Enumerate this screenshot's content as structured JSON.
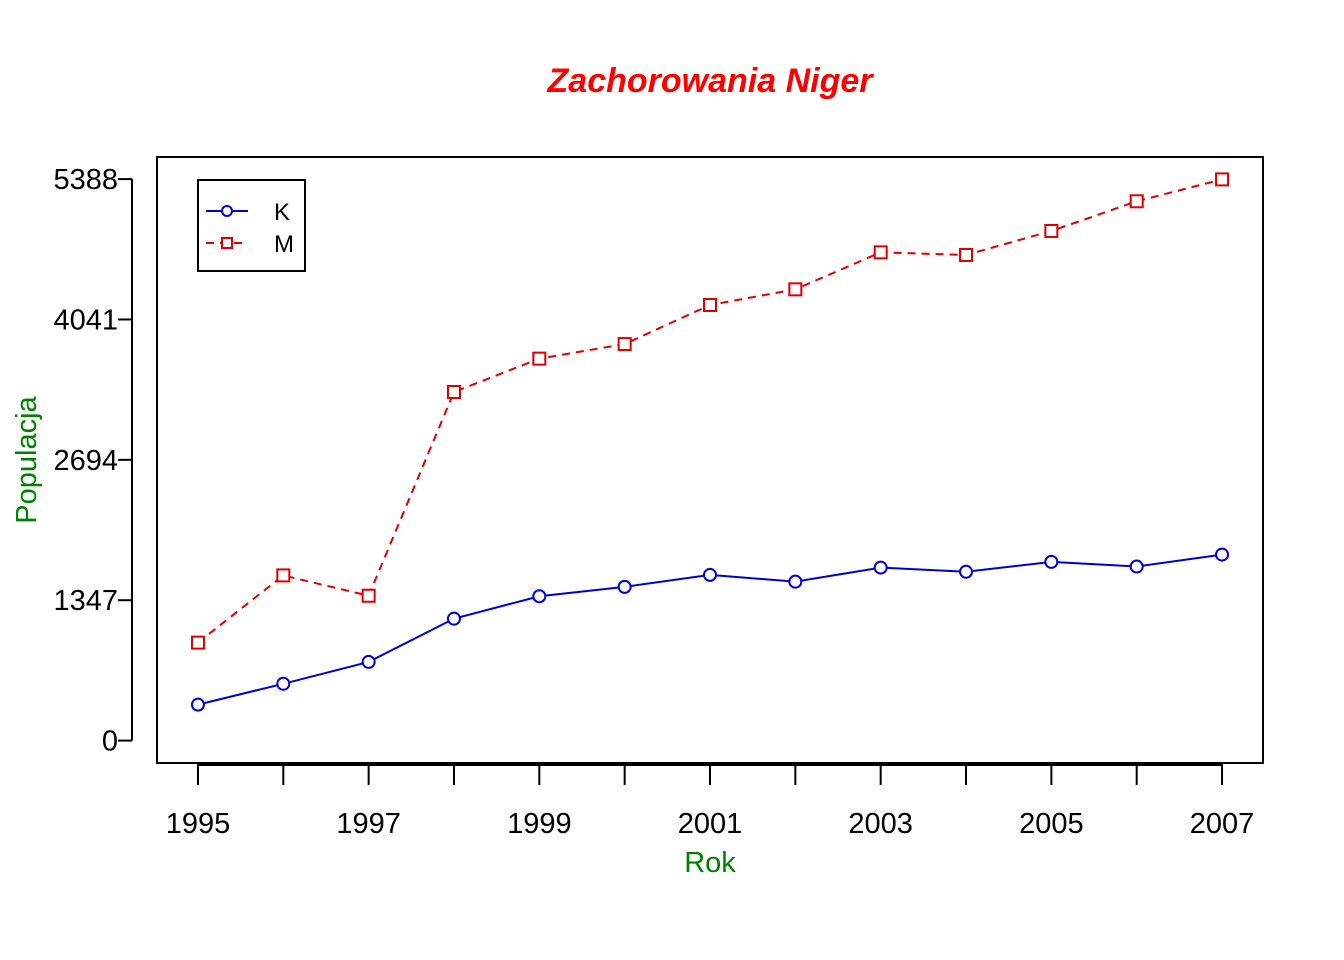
{
  "chart_data": {
    "type": "line",
    "title": "Zachorowania Niger",
    "xlabel": "Rok",
    "ylabel": "Populacja",
    "x": [
      1995,
      1996,
      1997,
      1998,
      1999,
      2000,
      2001,
      2002,
      2003,
      2004,
      2005,
      2006,
      2007
    ],
    "x_ticks": [
      1995,
      1997,
      1999,
      2001,
      2003,
      2005,
      2007
    ],
    "x_minor_ticks": [
      1996,
      1998,
      2000,
      2002,
      2004,
      2006
    ],
    "y_ticks": [
      0,
      1347,
      2694,
      4041,
      5388
    ],
    "xlim": [
      1994.52,
      2007.48
    ],
    "ylim": [
      -215,
      5600
    ],
    "grid": false,
    "legend_position": "top-left",
    "series": [
      {
        "name": "K",
        "color": "#0000cc",
        "line_style": "solid",
        "marker": "circle",
        "values": [
          345,
          545,
          755,
          1170,
          1385,
          1475,
          1590,
          1525,
          1660,
          1620,
          1715,
          1670,
          1785
        ]
      },
      {
        "name": "M",
        "color": "#dd0000",
        "line_style": "dashed",
        "marker": "square",
        "values": [
          940,
          1585,
          1390,
          3345,
          3665,
          3805,
          4180,
          4330,
          4685,
          4660,
          4890,
          5175,
          5385
        ]
      }
    ]
  }
}
